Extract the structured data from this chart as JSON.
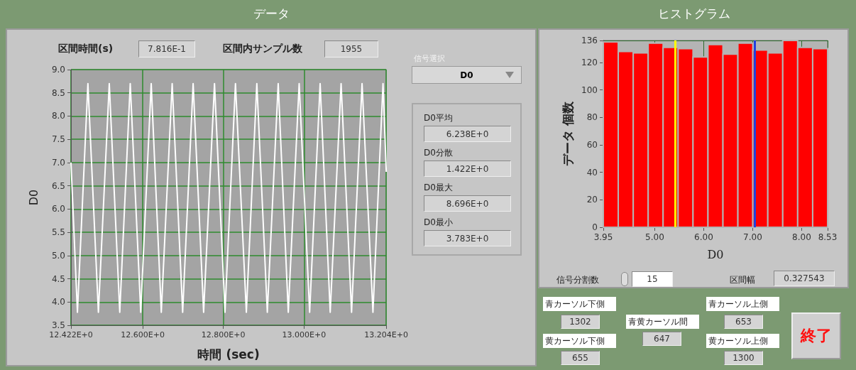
{
  "chart_data": [
    {
      "type": "line",
      "title": "データ",
      "xlabel": "時間 (sec)",
      "ylabel": "D0",
      "color": "#ffffff",
      "x": [
        12.422,
        12.438,
        12.464,
        12.49,
        12.517,
        12.543,
        12.569,
        12.595,
        12.621,
        12.646,
        12.673,
        12.699,
        12.725,
        12.751,
        12.778,
        12.804,
        12.83,
        12.857,
        12.883,
        12.909,
        12.936,
        12.961,
        12.988,
        13.014,
        13.04,
        13.065,
        13.092,
        13.118,
        13.144,
        13.171,
        13.196,
        13.204
      ],
      "values": [
        7.0,
        3.78,
        8.7,
        3.78,
        8.7,
        3.78,
        8.7,
        3.78,
        8.7,
        3.78,
        8.7,
        3.78,
        8.7,
        3.78,
        8.7,
        3.78,
        8.7,
        3.78,
        8.7,
        3.78,
        8.7,
        3.78,
        8.7,
        3.78,
        8.7,
        3.78,
        8.7,
        3.78,
        8.7,
        3.78,
        8.7,
        6.8
      ],
      "xlim": [
        12.422,
        13.204
      ],
      "xticks": [
        {
          "value": 12.422,
          "label": "12.422E+0"
        },
        {
          "value": 12.6,
          "label": "12.600E+0"
        },
        {
          "value": 12.8,
          "label": "12.800E+0"
        },
        {
          "value": 13.0,
          "label": "13.000E+0"
        },
        {
          "value": 13.204,
          "label": "13.204E+0"
        }
      ],
      "ylim": [
        3.5,
        9.0
      ],
      "yticks": [
        3.5,
        {
          "value": 4,
          "label": "4.0"
        },
        4.5,
        {
          "value": 5,
          "label": "5.0"
        },
        5.5,
        {
          "value": 6,
          "label": "6.0"
        },
        6.5,
        {
          "value": 7,
          "label": "7.0"
        },
        7.5,
        {
          "value": 8,
          "label": "8.0"
        },
        8.5,
        {
          "value": 9,
          "label": "9.0"
        }
      ],
      "grid": true,
      "annotations": [
        "区間時間(s)",
        "7.816E-1",
        "区間内サンプル数",
        "1955",
        "信号選択",
        "D0",
        "D0平均",
        "6.238E+0",
        "D0分散",
        "1.422E+0",
        "D0最大",
        "8.696E+0",
        "D0最小",
        "3.783E+0"
      ]
    },
    {
      "type": "histogram",
      "title": "ヒストグラム",
      "xlabel": "D0",
      "ylabel": "データ 個数",
      "color": "#ff0000",
      "bins": [
        3.95,
        4.255,
        4.561,
        4.866,
        5.171,
        5.477,
        5.782,
        6.087,
        6.393,
        6.698,
        7.003,
        7.309,
        7.614,
        7.919,
        8.225,
        8.53
      ],
      "values": [
        135,
        128,
        127,
        134,
        131,
        130,
        124,
        133,
        126,
        134,
        129,
        127,
        136,
        131,
        130
      ],
      "xlim": [
        3.95,
        8.53
      ],
      "xticks": [
        3.95,
        {
          "value": 5,
          "label": "5.00"
        },
        {
          "value": 6,
          "label": "6.00"
        },
        {
          "value": 7,
          "label": "7.00"
        },
        {
          "value": 8,
          "label": "8.00"
        },
        8.53
      ],
      "ylim": [
        0,
        136
      ],
      "yticks": [
        0,
        20,
        40,
        60,
        80,
        100,
        120,
        136
      ],
      "grid": true,
      "ref_lines": [
        {
          "axis": "x",
          "value": 5.42,
          "color": "#ffff00"
        },
        {
          "axis": "x",
          "value": 7.04,
          "color": "#2040e0"
        }
      ],
      "annotations": [
        "信号分割数",
        "15",
        "区間幅",
        "0.327543"
      ]
    },
    {
      "type": "other",
      "annotations": [
        "青カーソル下側",
        "1302",
        "黄カーソル下側",
        "655",
        "青黄カーソル間",
        "647",
        "青カーソル上側",
        "653",
        "黄カーソル上側",
        "1300",
        "終了"
      ]
    }
  ]
}
